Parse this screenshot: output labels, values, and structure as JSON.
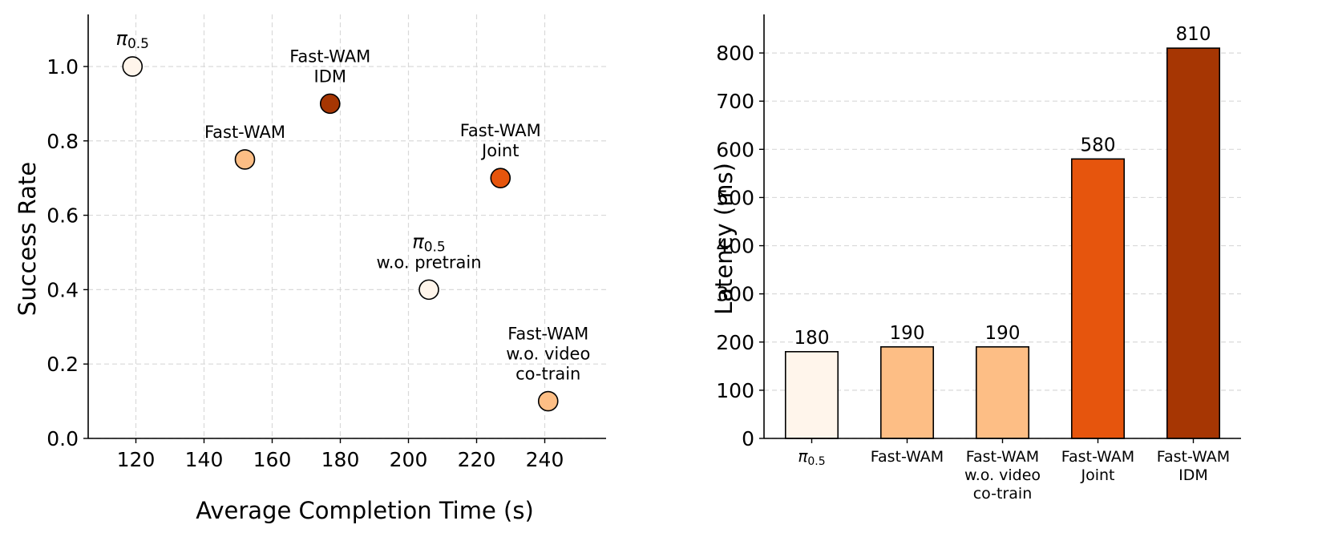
{
  "chart_data": [
    {
      "type": "scatter",
      "title": "",
      "xlabel": "Average Completion Time (s)",
      "ylabel": "Success Rate",
      "xlim": [
        106,
        258
      ],
      "ylim": [
        0,
        1.14
      ],
      "xticks": [
        120,
        140,
        160,
        180,
        200,
        220,
        240
      ],
      "xtick_labels": [
        "120",
        "140",
        "160",
        "180",
        "200",
        "220",
        "240"
      ],
      "yticks": [
        0.0,
        0.2,
        0.4,
        0.6,
        0.8,
        1.0
      ],
      "ytick_labels": [
        "0.0",
        "0.2",
        "0.4",
        "0.6",
        "0.8",
        "1.0"
      ],
      "grid": true,
      "points": [
        {
          "label_lines": [
            "π0.5"
          ],
          "x": 119,
          "y": 1.0,
          "color": "#fff5eb"
        },
        {
          "label_lines": [
            "Fast-WAM"
          ],
          "x": 152,
          "y": 0.75,
          "color": "#fdbe85"
        },
        {
          "label_lines": [
            "Fast-WAM",
            "IDM"
          ],
          "x": 177,
          "y": 0.9,
          "color": "#a63603"
        },
        {
          "label_lines": [
            "Fast-WAM",
            "Joint"
          ],
          "x": 227,
          "y": 0.7,
          "color": "#e6550d"
        },
        {
          "label_lines": [
            "π0.5",
            "w.o. pretrain"
          ],
          "x": 206,
          "y": 0.4,
          "color": "#fff5eb"
        },
        {
          "label_lines": [
            "Fast-WAM",
            "w.o. video",
            "co-train"
          ],
          "x": 241,
          "y": 0.1,
          "color": "#fdbe85"
        }
      ]
    },
    {
      "type": "bar",
      "title": "",
      "xlabel": "",
      "ylabel": "Latency (ms)",
      "ylim": [
        0,
        880
      ],
      "yticks": [
        0,
        100,
        200,
        300,
        400,
        500,
        600,
        700,
        800
      ],
      "ytick_labels": [
        "0",
        "100",
        "200",
        "300",
        "400",
        "500",
        "600",
        "700",
        "800"
      ],
      "grid": true,
      "categories": [
        [
          "π0.5"
        ],
        [
          "Fast-WAM"
        ],
        [
          "Fast-WAM",
          "w.o. video",
          "co-train"
        ],
        [
          "Fast-WAM",
          "Joint"
        ],
        [
          "Fast-WAM",
          "IDM"
        ]
      ],
      "values": [
        180,
        190,
        190,
        580,
        810
      ],
      "value_labels": [
        "180",
        "190",
        "190",
        "580",
        "810"
      ],
      "colors": [
        "#fff5eb",
        "#fdbe85",
        "#fdbe85",
        "#e6550d",
        "#a63603"
      ]
    }
  ]
}
